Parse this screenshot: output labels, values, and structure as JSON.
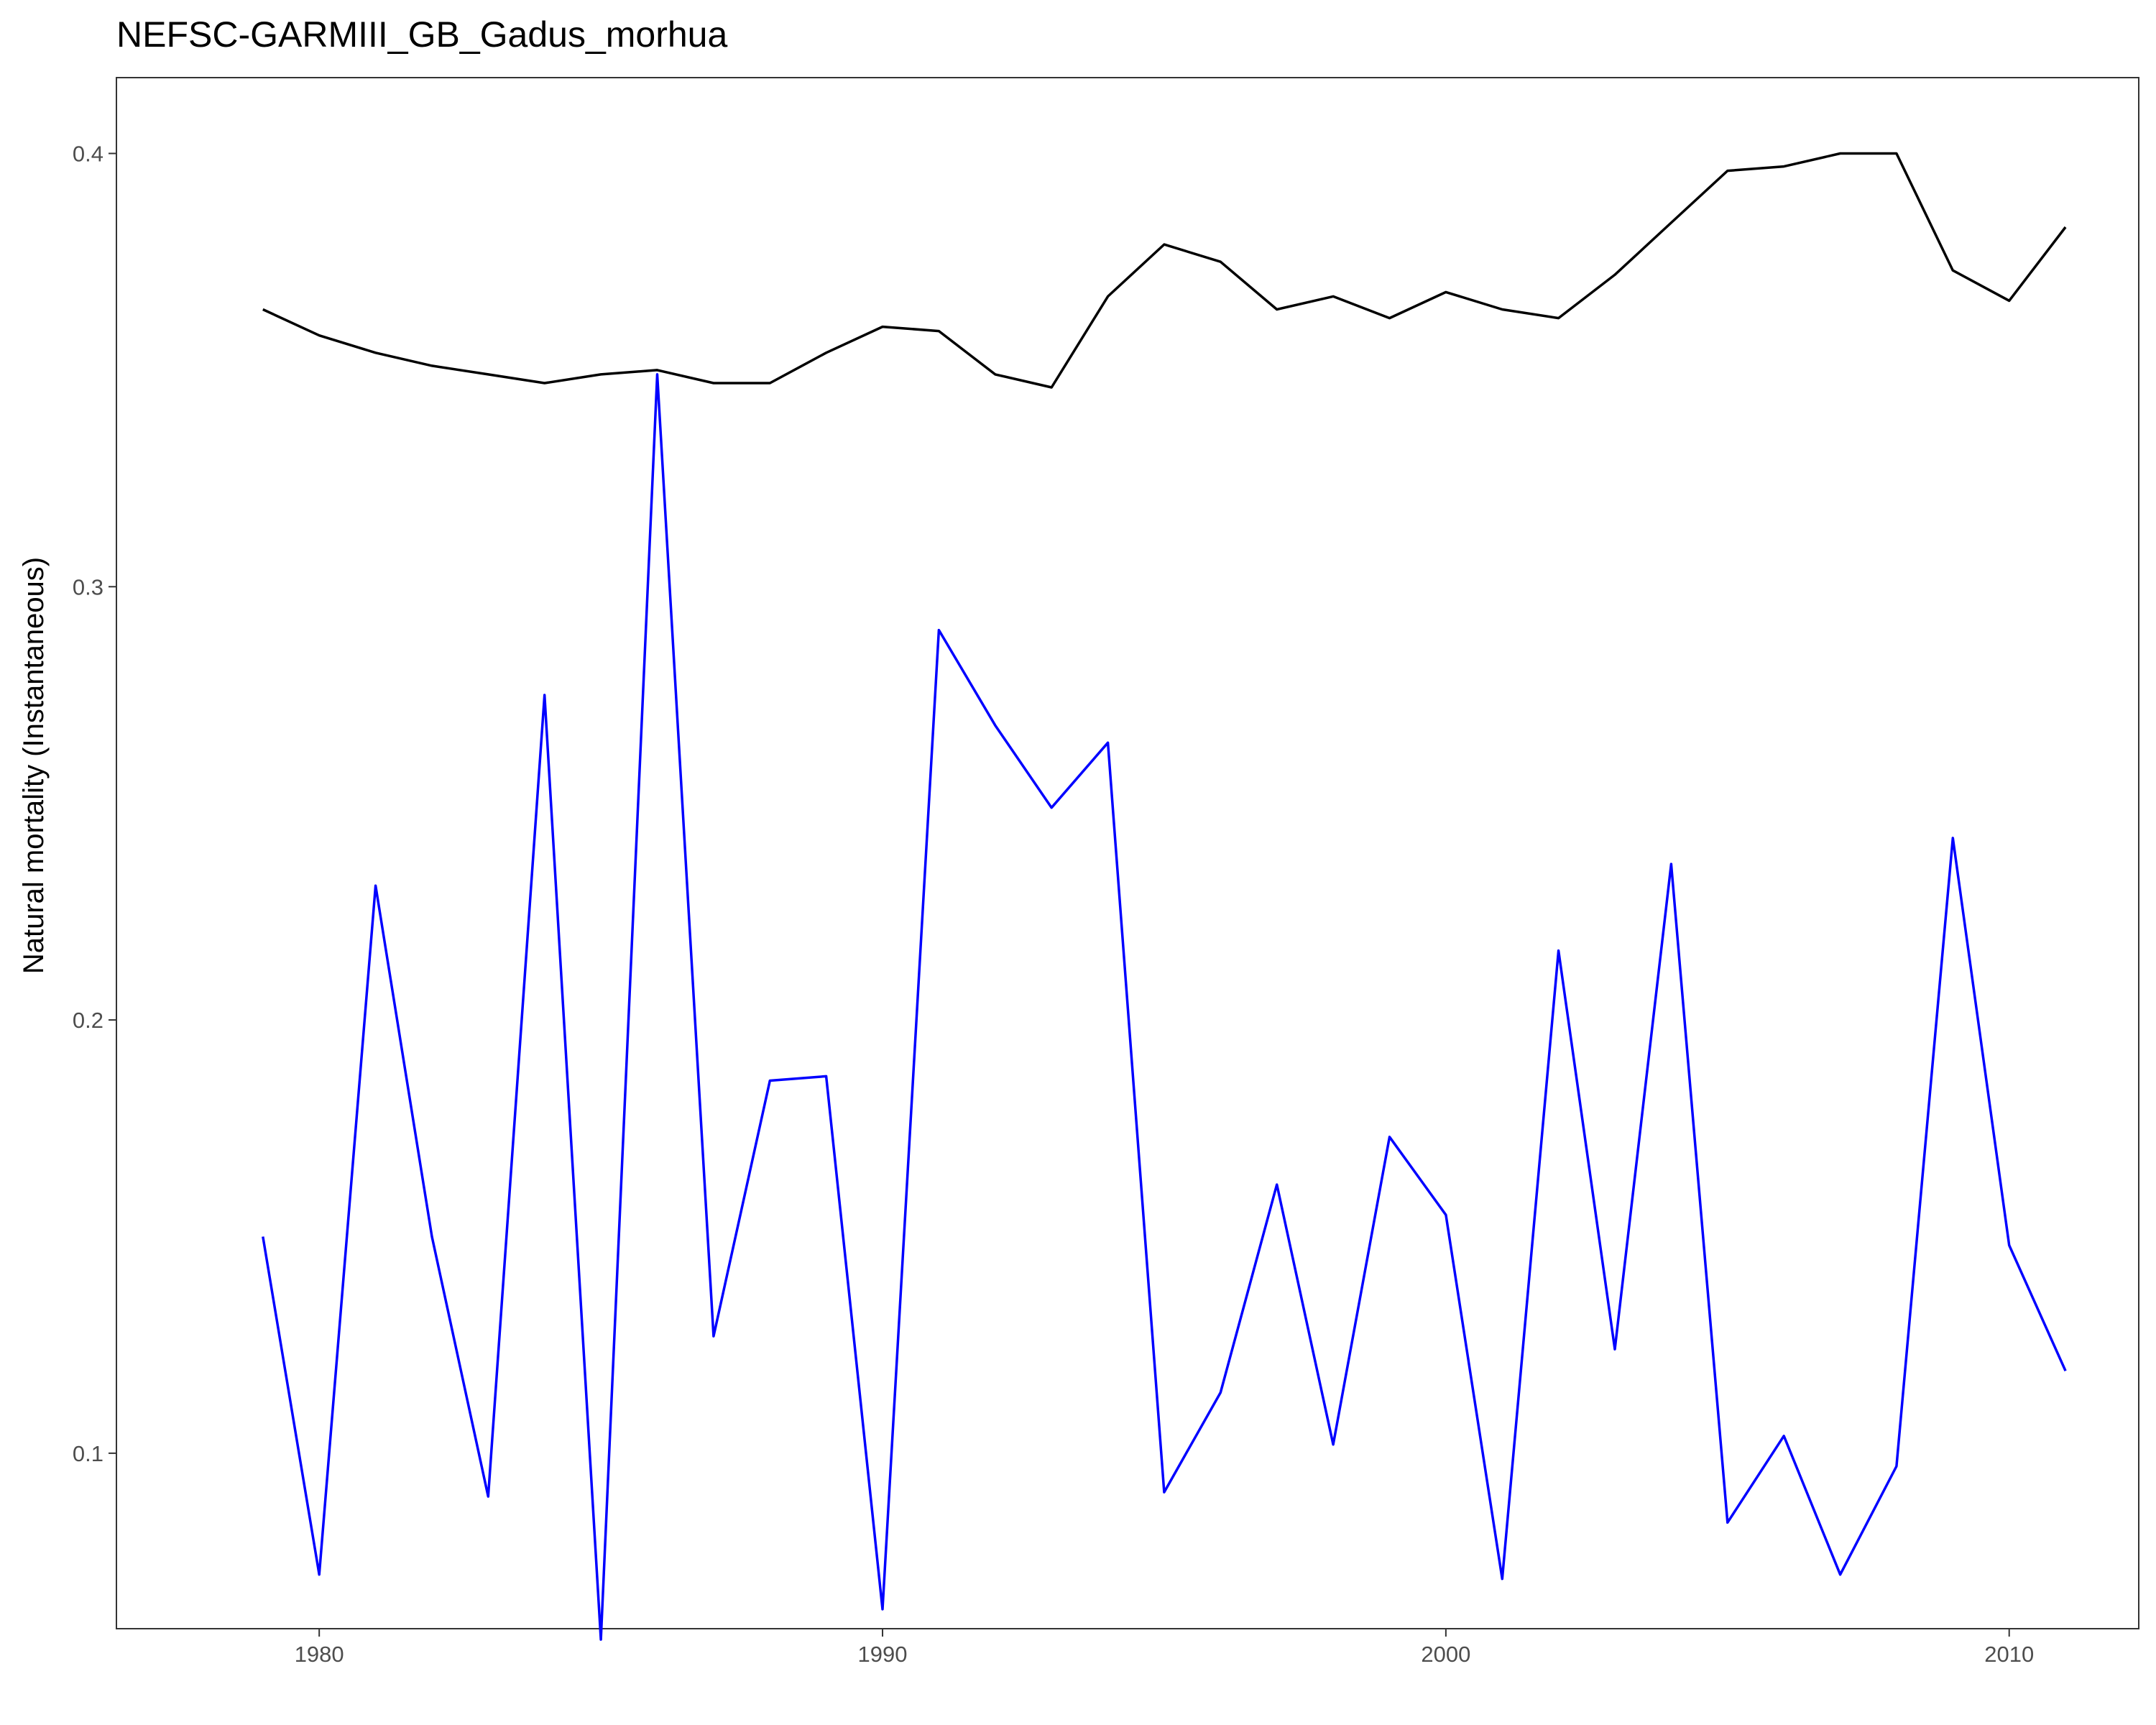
{
  "chart_data": {
    "type": "line",
    "title": "NEFSC-GARMIII_GB_Gadus_morhua",
    "xlabel": "",
    "ylabel": "Natural mortality (Instantaneous)",
    "xlim": [
      1976.4,
      2012.3
    ],
    "ylim": [
      0.0595,
      0.4175
    ],
    "x_ticks": [
      1980,
      1990,
      2000,
      2010
    ],
    "x_tick_labels": [
      "1980",
      "1990",
      "2000",
      "2010"
    ],
    "y_ticks": [
      0.1,
      0.2,
      0.3,
      0.4
    ],
    "y_tick_labels": [
      "0.1",
      "0.2",
      "0.3",
      "0.4"
    ],
    "grid": false,
    "x": [
      1979,
      1980,
      1981,
      1982,
      1983,
      1984,
      1985,
      1986,
      1987,
      1988,
      1989,
      1990,
      1991,
      1992,
      1993,
      1994,
      1995,
      1996,
      1997,
      1998,
      1999,
      2000,
      2001,
      2002,
      2003,
      2004,
      2005,
      2006,
      2007,
      2008,
      2009,
      2010,
      2011
    ],
    "series": [
      {
        "color": "#000000",
        "values": [
          0.364,
          0.358,
          0.354,
          0.351,
          0.349,
          0.347,
          0.349,
          0.35,
          0.347,
          0.347,
          0.354,
          0.36,
          0.359,
          0.349,
          0.346,
          0.367,
          0.379,
          0.375,
          0.364,
          0.367,
          0.362,
          0.368,
          0.364,
          0.362,
          0.372,
          0.384,
          0.396,
          0.397,
          0.4,
          0.4,
          0.373,
          0.366,
          0.383
        ]
      },
      {
        "color": "#0000ff",
        "values": [
          0.15,
          0.072,
          0.231,
          0.15,
          0.09,
          0.275,
          0.057,
          0.349,
          0.127,
          0.186,
          0.187,
          0.064,
          0.29,
          0.268,
          0.249,
          0.264,
          0.091,
          0.114,
          0.162,
          0.102,
          0.173,
          0.155,
          0.071,
          0.216,
          0.124,
          0.236,
          0.084,
          0.104,
          0.072,
          0.097,
          0.242,
          0.148,
          0.119
        ]
      }
    ]
  }
}
